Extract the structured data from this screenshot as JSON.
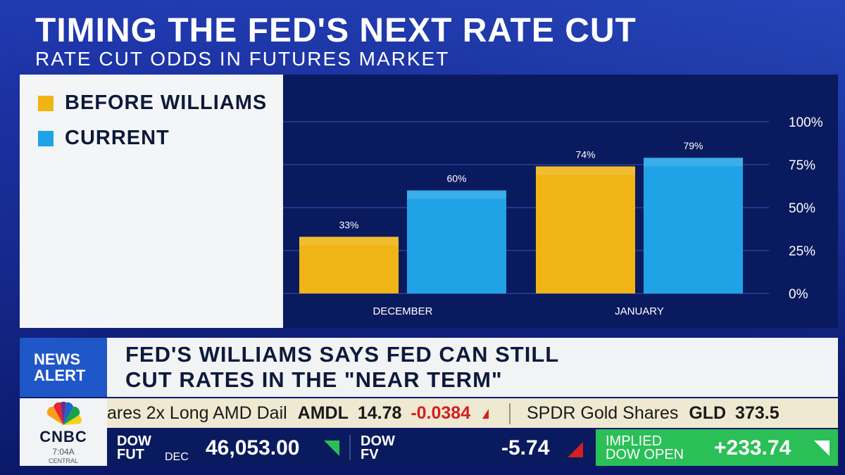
{
  "headline": "TIMING THE FED'S NEXT RATE CUT",
  "subhead": "RATE CUT ODDS IN FUTURES MARKET",
  "legend": [
    {
      "label": "BEFORE WILLIAMS",
      "color": "#f0b414"
    },
    {
      "label": "CURRENT",
      "color": "#1fa3e6"
    }
  ],
  "chart_data": {
    "type": "bar",
    "categories": [
      "DECEMBER",
      "JANUARY"
    ],
    "series": [
      {
        "name": "BEFORE WILLIAMS",
        "values": [
          33,
          74
        ],
        "labels": [
          "33%",
          "74%"
        ],
        "color": "#f0b414"
      },
      {
        "name": "CURRENT",
        "values": [
          60,
          79
        ],
        "labels": [
          "60%",
          "79%"
        ],
        "color": "#1fa3e6"
      }
    ],
    "ylim": [
      0,
      100
    ],
    "yticks": [
      0,
      25,
      50,
      75,
      100
    ],
    "ytick_labels": [
      "0%",
      "25%",
      "50%",
      "75%",
      "100%"
    ],
    "grid": true,
    "legend_position": "left"
  },
  "alert": {
    "badge_line1": "NEWS",
    "badge_line2": "ALERT",
    "line1": "FED'S WILLIAMS SAYS FED CAN STILL",
    "line2": "CUT RATES IN THE \"NEAR TERM\""
  },
  "ticker": {
    "item1_name": "ares 2x Long AMD Dail",
    "item1_symbol": "AMDL",
    "item1_value": "14.78",
    "item1_change": "-0.0384",
    "item2_name": "SPDR Gold Shares",
    "item2_symbol": "GLD",
    "item2_value": "373.5"
  },
  "logo": {
    "name": "CNBC",
    "time": "7:04A",
    "zone": "CENTRAL"
  },
  "market": {
    "dow_fut_label1": "DOW",
    "dow_fut_label2": "FUT",
    "dow_fut_sub": "DEC",
    "dow_fut_value": "46,053.00",
    "dow_fv_label1": "DOW",
    "dow_fv_label2": "FV",
    "dow_fv_value": "-5.74",
    "implied_label1": "IMPLIED",
    "implied_label2": "DOW OPEN",
    "implied_value": "+233.74"
  },
  "colors": {
    "up": "#2bbf57",
    "down": "#d32020",
    "panel": "#0a1a5e"
  }
}
